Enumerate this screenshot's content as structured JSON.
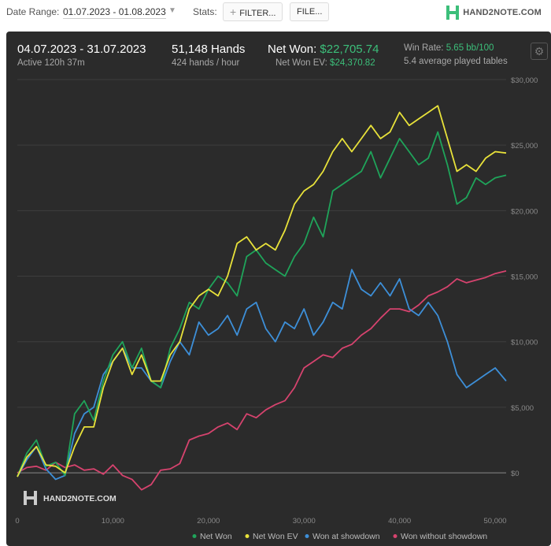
{
  "toolbar": {
    "date_range_label": "Date Range:",
    "date_range_value": "01.07.2023 - 01.08.2023",
    "stats_label": "Stats:",
    "filter_button": "FILTER...",
    "file_button": "FILE...",
    "logo_text": "HAND2NOTE.COM"
  },
  "summary": {
    "period": "04.07.2023 - 31.07.2023",
    "active": "Active 120h 37m",
    "hands": "51,148 Hands",
    "hands_per_hour": "424 hands / hour",
    "net_won_label": "Net Won:",
    "net_won_value": "$22,705.74",
    "net_won_ev_label": "Net Won  EV:",
    "net_won_ev_value": "$24,370.82",
    "win_rate_label": "Win Rate:",
    "win_rate_value": "5.65 bb/100",
    "tables": "5.4 average played tables"
  },
  "chart_data": {
    "type": "line",
    "x_ticks": [
      "0",
      "10,000",
      "20,000",
      "30,000",
      "40,000",
      "50,000"
    ],
    "y_ticks": [
      "$0",
      "$5,000",
      "$10,000",
      "$15,000",
      "$20,000",
      "$25,000",
      "$30,000"
    ],
    "xlim": [
      0,
      51148
    ],
    "ylim": [
      -3000,
      30000
    ],
    "grid": true,
    "legend_position": "bottom-right",
    "watermark": "HAND2NOTE.COM",
    "series": [
      {
        "name": "Net Won",
        "color": "#1fa45a",
        "x": [
          0,
          1000,
          2000,
          3000,
          4000,
          5000,
          6000,
          7000,
          8000,
          9000,
          10000,
          11000,
          12000,
          13000,
          14000,
          15000,
          16000,
          17000,
          18000,
          19000,
          20000,
          21000,
          22000,
          23000,
          24000,
          25000,
          26000,
          27000,
          28000,
          29000,
          30000,
          31000,
          32000,
          33000,
          34000,
          35000,
          36000,
          37000,
          38000,
          39000,
          40000,
          41000,
          42000,
          43000,
          44000,
          45000,
          46000,
          47000,
          48000,
          49000,
          50000,
          51148
        ],
        "y": [
          -300,
          1500,
          2500,
          500,
          800,
          -200,
          4500,
          5500,
          4000,
          7000,
          9000,
          10000,
          8000,
          9500,
          7000,
          6500,
          9500,
          11000,
          13000,
          12500,
          14000,
          15000,
          14500,
          13500,
          16500,
          17000,
          16000,
          15500,
          15000,
          16500,
          17500,
          19500,
          18000,
          21500,
          22000,
          22500,
          23000,
          24500,
          22500,
          24000,
          25500,
          24500,
          23500,
          24000,
          26000,
          23500,
          20500,
          21000,
          22500,
          22000,
          22500,
          22700
        ]
      },
      {
        "name": "Net Won  EV",
        "color": "#e8e23a",
        "x": [
          0,
          1000,
          2000,
          3000,
          4000,
          5000,
          6000,
          7000,
          8000,
          9000,
          10000,
          11000,
          12000,
          13000,
          14000,
          15000,
          16000,
          17000,
          18000,
          19000,
          20000,
          21000,
          22000,
          23000,
          24000,
          25000,
          26000,
          27000,
          28000,
          29000,
          30000,
          31000,
          32000,
          33000,
          34000,
          35000,
          36000,
          37000,
          38000,
          39000,
          40000,
          41000,
          42000,
          43000,
          44000,
          45000,
          46000,
          47000,
          48000,
          49000,
          50000,
          51148
        ],
        "y": [
          -300,
          1200,
          2000,
          600,
          500,
          0,
          2000,
          3500,
          3500,
          6500,
          8500,
          9500,
          7500,
          9000,
          7000,
          7000,
          9000,
          10000,
          12500,
          13500,
          14000,
          13500,
          15000,
          17500,
          18000,
          17000,
          17500,
          17000,
          18500,
          20500,
          21500,
          22000,
          23000,
          24500,
          25500,
          24500,
          25500,
          26500,
          25500,
          26000,
          27500,
          26500,
          27000,
          27500,
          28000,
          25500,
          23000,
          23500,
          23000,
          24000,
          24500,
          24400
        ]
      },
      {
        "name": "Won at showdown",
        "color": "#3d8fd8",
        "x": [
          0,
          1000,
          2000,
          3000,
          4000,
          5000,
          6000,
          7000,
          8000,
          9000,
          10000,
          11000,
          12000,
          13000,
          14000,
          15000,
          16000,
          17000,
          18000,
          19000,
          20000,
          21000,
          22000,
          23000,
          24000,
          25000,
          26000,
          27000,
          28000,
          29000,
          30000,
          31000,
          32000,
          33000,
          34000,
          35000,
          36000,
          37000,
          38000,
          39000,
          40000,
          41000,
          42000,
          43000,
          44000,
          45000,
          46000,
          47000,
          48000,
          49000,
          50000,
          51148
        ],
        "y": [
          -300,
          1000,
          2000,
          300,
          -500,
          -200,
          3000,
          4500,
          5000,
          7500,
          8500,
          9500,
          8000,
          8000,
          7000,
          6500,
          8500,
          10000,
          9000,
          11500,
          10500,
          11000,
          12000,
          10500,
          12500,
          13000,
          11000,
          10000,
          11500,
          11000,
          12500,
          10500,
          11500,
          13000,
          12500,
          15500,
          14000,
          13500,
          14500,
          13500,
          14800,
          12500,
          12000,
          13000,
          12000,
          10000,
          7500,
          6500,
          7000,
          7500,
          8000,
          7000
        ]
      },
      {
        "name": "Won without showdown",
        "color": "#d6436e",
        "x": [
          0,
          1000,
          2000,
          3000,
          4000,
          5000,
          6000,
          7000,
          8000,
          9000,
          10000,
          11000,
          12000,
          13000,
          14000,
          15000,
          16000,
          17000,
          18000,
          19000,
          20000,
          21000,
          22000,
          23000,
          24000,
          25000,
          26000,
          27000,
          28000,
          29000,
          30000,
          31000,
          32000,
          33000,
          34000,
          35000,
          36000,
          37000,
          38000,
          39000,
          40000,
          41000,
          42000,
          43000,
          44000,
          45000,
          46000,
          47000,
          48000,
          49000,
          50000,
          51148
        ],
        "y": [
          0,
          400,
          500,
          200,
          800,
          400,
          600,
          200,
          300,
          -100,
          600,
          -200,
          -500,
          -1300,
          -900,
          200,
          300,
          700,
          2500,
          2800,
          3000,
          3500,
          3800,
          3300,
          4500,
          4200,
          4800,
          5200,
          5500,
          6500,
          8000,
          8500,
          9000,
          8800,
          9500,
          9800,
          10500,
          11000,
          11800,
          12500,
          12500,
          12300,
          12800,
          13500,
          13800,
          14200,
          14800,
          14500,
          14700,
          14900,
          15200,
          15400
        ]
      }
    ]
  }
}
